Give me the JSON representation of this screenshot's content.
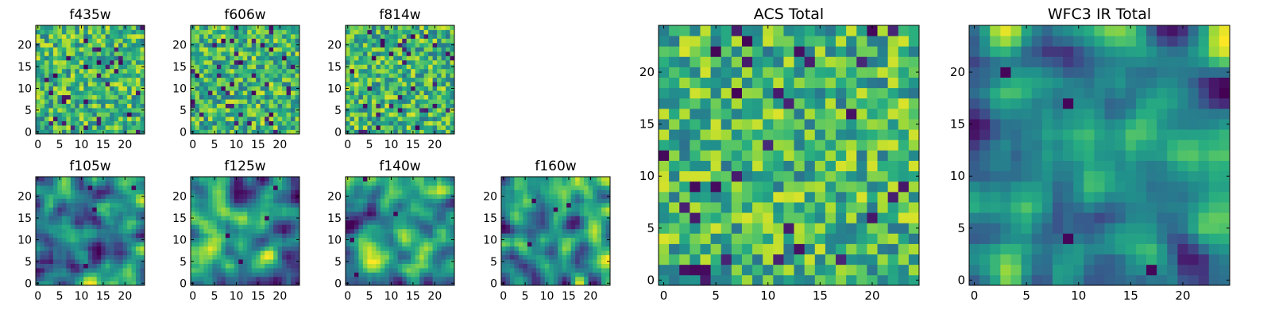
{
  "figure": {
    "background": "#ffffff",
    "colormap": "viridis"
  },
  "chart_data": [
    {
      "type": "heatmap",
      "title": "f435w",
      "grid_size": [
        25,
        25
      ],
      "xlim": [
        0,
        24
      ],
      "ylim": [
        0,
        24
      ],
      "xticks": [
        0,
        5,
        10,
        15,
        20
      ],
      "yticks": [
        0,
        5,
        10,
        15,
        20
      ],
      "texture": "fine_noise",
      "seed": 11
    },
    {
      "type": "heatmap",
      "title": "f606w",
      "grid_size": [
        25,
        25
      ],
      "xlim": [
        0,
        24
      ],
      "ylim": [
        0,
        24
      ],
      "xticks": [
        0,
        5,
        10,
        15,
        20
      ],
      "yticks": [
        0,
        5,
        10,
        15,
        20
      ],
      "texture": "fine_noise",
      "seed": 23
    },
    {
      "type": "heatmap",
      "title": "f814w",
      "grid_size": [
        25,
        25
      ],
      "xlim": [
        0,
        24
      ],
      "ylim": [
        0,
        24
      ],
      "xticks": [
        0,
        5,
        10,
        15,
        20
      ],
      "yticks": [
        0,
        5,
        10,
        15,
        20
      ],
      "texture": "fine_noise",
      "seed": 37
    },
    {
      "type": "heatmap",
      "title": "f105w",
      "grid_size": [
        25,
        25
      ],
      "xlim": [
        0,
        24
      ],
      "ylim": [
        0,
        24
      ],
      "xticks": [
        0,
        5,
        10,
        15,
        20
      ],
      "yticks": [
        0,
        5,
        10,
        15,
        20
      ],
      "texture": "smooth_noise",
      "seed": 41
    },
    {
      "type": "heatmap",
      "title": "f125w",
      "grid_size": [
        25,
        25
      ],
      "xlim": [
        0,
        24
      ],
      "ylim": [
        0,
        24
      ],
      "xticks": [
        0,
        5,
        10,
        15,
        20
      ],
      "yticks": [
        0,
        5,
        10,
        15,
        20
      ],
      "texture": "smooth_noise",
      "seed": 53
    },
    {
      "type": "heatmap",
      "title": "f140w",
      "grid_size": [
        25,
        25
      ],
      "xlim": [
        0,
        24
      ],
      "ylim": [
        0,
        24
      ],
      "xticks": [
        0,
        5,
        10,
        15,
        20
      ],
      "yticks": [
        0,
        5,
        10,
        15,
        20
      ],
      "texture": "smooth_noise",
      "seed": 67
    },
    {
      "type": "heatmap",
      "title": "f160w",
      "grid_size": [
        25,
        25
      ],
      "xlim": [
        0,
        24
      ],
      "ylim": [
        0,
        24
      ],
      "xticks": [
        0,
        5,
        10,
        15,
        20
      ],
      "yticks": [
        0,
        5,
        10,
        15,
        20
      ],
      "texture": "smooth_noise",
      "seed": 79
    },
    {
      "type": "heatmap",
      "title": "ACS Total",
      "grid_size": [
        25,
        25
      ],
      "xlim": [
        0,
        24
      ],
      "ylim": [
        0,
        24
      ],
      "xticks": [
        0,
        5,
        10,
        15,
        20
      ],
      "yticks": [
        0,
        5,
        10,
        15,
        20
      ],
      "texture": "fine_noise",
      "seed": 97
    },
    {
      "type": "heatmap",
      "title": "WFC3 IR Total",
      "grid_size": [
        25,
        25
      ],
      "xlim": [
        0,
        24
      ],
      "ylim": [
        0,
        24
      ],
      "xticks": [
        0,
        5,
        10,
        15,
        20
      ],
      "yticks": [
        0,
        5,
        10,
        15,
        20
      ],
      "texture": "smooth_noise",
      "seed": 113
    }
  ]
}
